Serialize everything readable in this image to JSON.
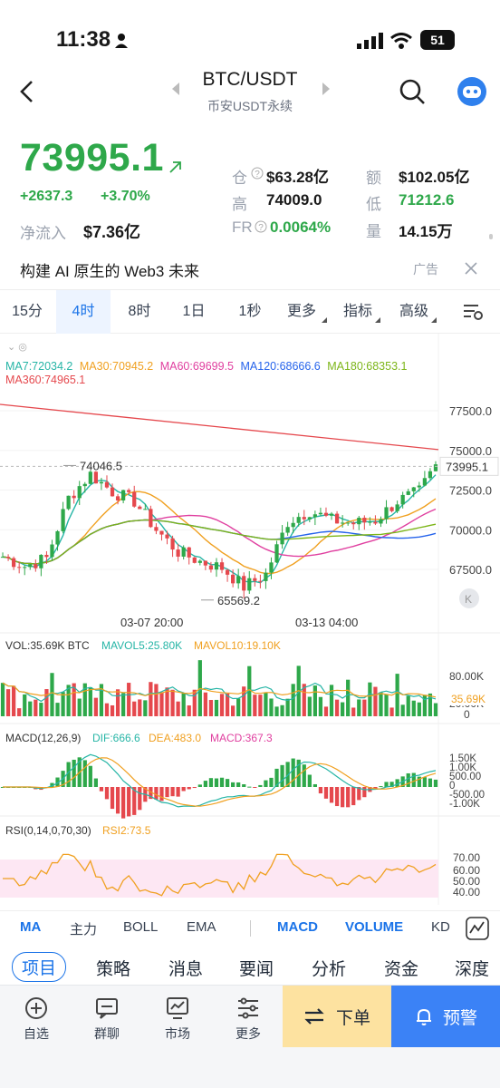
{
  "status": {
    "time": "11:38",
    "battery": "51"
  },
  "header": {
    "pair": "BTC/USDT",
    "sub": "币安USDT永续"
  },
  "price": {
    "last": "73995.1",
    "change": "+2637.3",
    "change_pct": "+3.70%",
    "inflow_label": "净流入",
    "inflow_value": "$7.36亿",
    "oi_label": "仓",
    "oi_value": "$63.28亿",
    "turnover_label": "额",
    "turnover_value": "$102.05亿",
    "high_label": "高",
    "high_value": "74009.0",
    "low_label": "低",
    "low_value": "71212.6",
    "fr_label": "FR",
    "fr_value": "0.0064%",
    "vol_label": "量",
    "vol_value": "14.15万"
  },
  "ad": {
    "text": "构建 AI 原生的 Web3 未来",
    "tag": "广告"
  },
  "tabs": [
    "15分",
    "4时",
    "8时",
    "1日",
    "1秒",
    "更多",
    "指标",
    "高级"
  ],
  "chart": {
    "ma_line1": [
      "MA7:72034.2",
      "MA30:70945.2",
      "MA60:69699.5",
      "MA120:68666.6",
      "MA180:68353.1"
    ],
    "ma_line2": "MA360:74965.1",
    "price_ticks": [
      "77500.0",
      "75000.0",
      "72500.0",
      "70000.0",
      "67500.0"
    ],
    "last_tag": "73995.1",
    "high_mark": "74046.5",
    "low_mark": "65569.2",
    "dates": [
      "03-07 20:00",
      "03-13 04:00"
    ],
    "vol_label": "VOL:35.69K BTC",
    "mavol5": "MAVOL5:25.80K",
    "mavol10": "MAVOL10:19.10K",
    "vol_ticks": [
      "80.00K",
      "20.00K",
      "0"
    ],
    "vol_tag": "35.69K",
    "macd_label": "MACD(12,26,9)",
    "dif": "DIF:666.6",
    "dea": "DEA:483.0",
    "macd": "MACD:367.3",
    "macd_ticks": [
      "1.50K",
      "1.00K",
      "500.00",
      "0",
      "-500.00",
      "-1.00K"
    ],
    "rsi_label": "RSI(0,14,0,70,30)",
    "rsi2": "RSI2:73.5",
    "rsi_ticks": [
      "70.00",
      "60.00",
      "50.00",
      "40.00"
    ]
  },
  "indicators": [
    "MA",
    "主力",
    "BOLL",
    "EMA",
    "MACD",
    "VOLUME",
    "KD"
  ],
  "subtabs": [
    "项目",
    "策略",
    "消息",
    "要闻",
    "分析",
    "资金",
    "深度"
  ],
  "bottom_nav": [
    "自选",
    "群聊",
    "市场",
    "更多"
  ],
  "actions": {
    "order": "下单",
    "alert": "预警"
  },
  "colors": {
    "up": "#2ea84a",
    "down": "#e5484d",
    "accent": "#1a73e8",
    "ma7": "#26b5a6",
    "ma30": "#f0a020",
    "ma60": "#e040a0",
    "ma120": "#2563eb",
    "ma180": "#7cb518",
    "ma360": "#e5484d"
  }
}
